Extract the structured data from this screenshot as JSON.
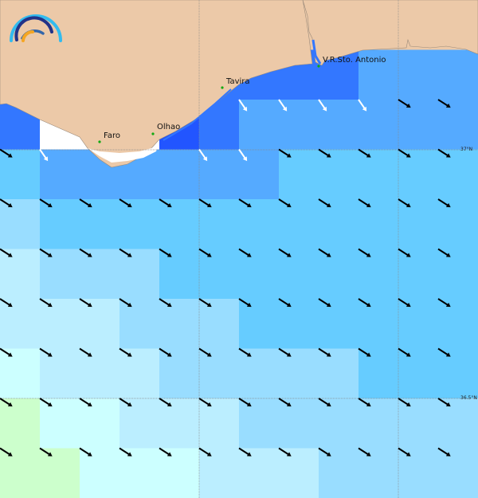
{
  "colors": {
    "land": "#ecc9a8",
    "coast": "#9a8a7a",
    "city_dot": "#11aa11",
    "grid": "#888888"
  },
  "cells": [
    [
      "land",
      "land",
      "land",
      "land",
      "land",
      "land",
      "land",
      "land",
      "land",
      "land",
      "land",
      "land"
    ],
    [
      "land",
      "land",
      "land",
      "land",
      "land",
      "#3377ff",
      "#3377ff",
      "#3377ff",
      "#3377ff",
      "#55aaff",
      "#55aaff",
      "#55aaff"
    ],
    [
      "#3377ff",
      "#ffffff",
      "#ffffff",
      "#ffffff",
      "#2255ff",
      "#3377ff",
      "#55aaff",
      "#55aaff",
      "#55aaff",
      "#55aaff",
      "#55aaff",
      "#55aaff"
    ],
    [
      "#66ccff",
      "#55aaff",
      "#55aaff",
      "#55aaff",
      "#55aaff",
      "#55aaff",
      "#55aaff",
      "#66ccff",
      "#66ccff",
      "#66ccff",
      "#66ccff",
      "#66ccff"
    ],
    [
      "#99ddff",
      "#66ccff",
      "#66ccff",
      "#66ccff",
      "#66ccff",
      "#66ccff",
      "#66ccff",
      "#66ccff",
      "#66ccff",
      "#66ccff",
      "#66ccff",
      "#66ccff"
    ],
    [
      "#bbeeff",
      "#99ddff",
      "#99ddff",
      "#99ddff",
      "#66ccff",
      "#66ccff",
      "#66ccff",
      "#66ccff",
      "#66ccff",
      "#66ccff",
      "#66ccff",
      "#66ccff"
    ],
    [
      "#bbeeff",
      "#bbeeff",
      "#bbeeff",
      "#99ddff",
      "#99ddff",
      "#99ddff",
      "#66ccff",
      "#66ccff",
      "#66ccff",
      "#66ccff",
      "#66ccff",
      "#66ccff"
    ],
    [
      "#ccffff",
      "#bbeeff",
      "#bbeeff",
      "#bbeeff",
      "#99ddff",
      "#99ddff",
      "#99ddff",
      "#99ddff",
      "#99ddff",
      "#66ccff",
      "#66ccff",
      "#66ccff"
    ],
    [
      "#ccffcc",
      "#ccffff",
      "#ccffff",
      "#bbeeff",
      "#bbeeff",
      "#bbeeff",
      "#99ddff",
      "#99ddff",
      "#99ddff",
      "#99ddff",
      "#99ddff",
      "#99ddff"
    ],
    [
      "#ccffcc",
      "#ccffcc",
      "#ccffff",
      "#ccffff",
      "#ccffff",
      "#bbeeff",
      "#bbeeff",
      "#bbeeff",
      "#99ddff",
      "#99ddff",
      "#99ddff",
      "#99ddff"
    ]
  ],
  "arrows": [
    [
      "",
      "",
      "",
      "",
      "",
      "",
      "",
      "",
      "",
      "",
      "",
      ""
    ],
    [
      "",
      "",
      "",
      "",
      "",
      "",
      "",
      "",
      "",
      "",
      "",
      ""
    ],
    [
      "",
      "",
      "",
      "",
      "",
      "",
      "w",
      "w",
      "w",
      "w",
      "b",
      "b"
    ],
    [
      "b",
      "w",
      "",
      "",
      "",
      "w",
      "w",
      "b",
      "b",
      "b",
      "b",
      "b"
    ],
    [
      "b",
      "b",
      "b",
      "b",
      "b",
      "b",
      "b",
      "b",
      "b",
      "b",
      "b",
      "b"
    ],
    [
      "b",
      "b",
      "b",
      "b",
      "b",
      "b",
      "b",
      "b",
      "b",
      "b",
      "b",
      "b"
    ],
    [
      "b",
      "b",
      "b",
      "b",
      "b",
      "b",
      "b",
      "b",
      "b",
      "b",
      "b",
      "b"
    ],
    [
      "b",
      "b",
      "b",
      "b",
      "b",
      "b",
      "b",
      "b",
      "b",
      "b",
      "b",
      "b"
    ],
    [
      "b",
      "b",
      "b",
      "b",
      "b",
      "b",
      "b",
      "b",
      "b",
      "b",
      "b",
      "b"
    ],
    [
      "b",
      "b",
      "b",
      "b",
      "b",
      "b",
      "b",
      "b",
      "b",
      "b",
      "b",
      "b"
    ]
  ],
  "cities": {
    "faro": "Faro",
    "olhao": "Olhao",
    "tavira": "Tavira",
    "vrsa": "V.R.Sto. Antonio"
  },
  "latitude_labels": {
    "lat37": "37°N",
    "lat365": "36.5°N"
  },
  "logo": {
    "icon": "wave-arcs-logo"
  }
}
